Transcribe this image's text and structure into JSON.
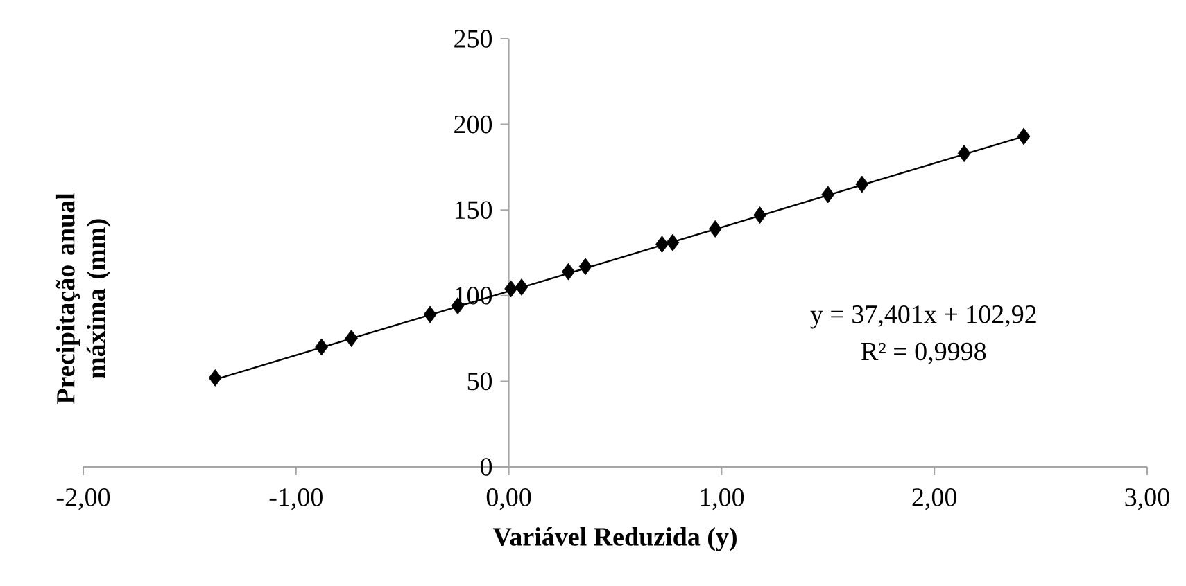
{
  "chart_data": {
    "type": "scatter",
    "xlabel": "Variável Reduzida (y)",
    "ylabel": "Precipitação anual máxima (mm)",
    "grid": false,
    "xlim": [
      -2,
      3
    ],
    "xticks": [
      {
        "value": -2,
        "label": "-2,00"
      },
      {
        "value": -1,
        "label": "-1,00"
      },
      {
        "value": 0,
        "label": "0,00"
      },
      {
        "value": 1,
        "label": "1,00"
      },
      {
        "value": 2,
        "label": "2,00"
      },
      {
        "value": 3,
        "label": "3,00"
      }
    ],
    "ylim": [
      0,
      250
    ],
    "yticks": [
      0,
      50,
      100,
      150,
      200,
      250
    ],
    "series": [
      {
        "marker": "diamond",
        "color": "#000000",
        "x": [
          -1.38,
          -0.88,
          -0.74,
          -0.37,
          -0.24,
          0.01,
          0.06,
          0.28,
          0.36,
          0.72,
          0.77,
          0.97,
          1.18,
          1.5,
          1.66,
          2.14,
          2.42
        ],
        "values": [
          52,
          70,
          75,
          89,
          94,
          104,
          105,
          114,
          117,
          130,
          131,
          139,
          147,
          159,
          165,
          183,
          193
        ]
      },
      {
        "type": "line",
        "color": "#000000",
        "x": [
          -1.38,
          2.42
        ],
        "values": [
          51,
          193
        ]
      }
    ],
    "annotations": [
      "y = 37,401x + 102,92",
      "R² = 0,9998"
    ]
  }
}
